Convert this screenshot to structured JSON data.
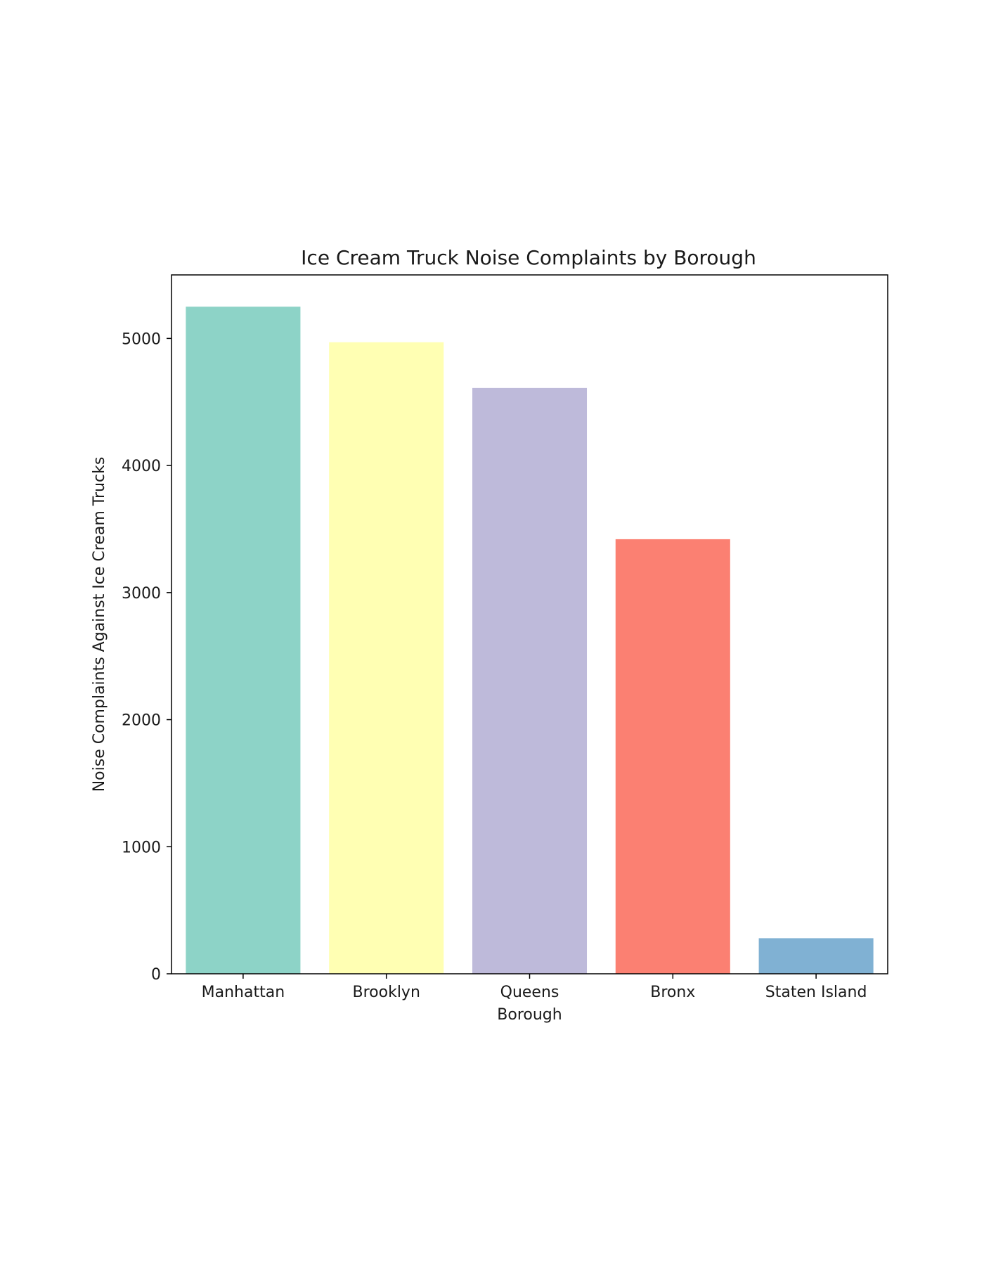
{
  "chart_data": {
    "type": "bar",
    "title": "Ice Cream Truck Noise Complaints by Borough",
    "xlabel": "Borough",
    "ylabel": "Noise Complaints Against Ice Cream Trucks",
    "categories": [
      "Manhattan",
      "Brooklyn",
      "Queens",
      "Bronx",
      "Staten Island"
    ],
    "values": [
      5250,
      4970,
      4610,
      3420,
      280
    ],
    "colors": [
      "#8dd3c7",
      "#ffffb3",
      "#bebada",
      "#fb8072",
      "#80b1d3"
    ],
    "ylim": [
      0,
      5500
    ],
    "yticks": [
      0,
      1000,
      2000,
      3000,
      4000,
      5000
    ],
    "grid": false,
    "legend": "none"
  }
}
